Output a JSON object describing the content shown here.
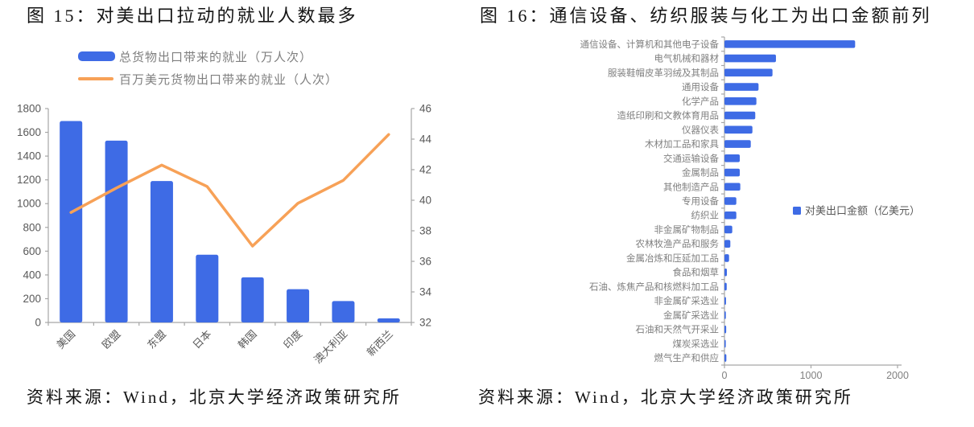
{
  "colors": {
    "bar": "#3E6BE5",
    "line": "#F7A157",
    "axis": "#A6A6A6",
    "tick": "#595959",
    "label": "#808080",
    "title": "#141414"
  },
  "chart_data": [
    {
      "type": "combo",
      "title": "图 15：对美出口拉动的就业人数最多",
      "categories": [
        "美国",
        "欧盟",
        "东盟",
        "日本",
        "韩国",
        "印度",
        "澳大利亚",
        "新西兰"
      ],
      "series": [
        {
          "name": "总货物出口带来的就业（万人次）",
          "type": "bar",
          "axis": "left",
          "values": [
            1695,
            1530,
            1190,
            570,
            380,
            280,
            180,
            35
          ]
        },
        {
          "name": "百万美元货物出口带来的就业（人次）",
          "type": "line",
          "axis": "right",
          "values": [
            39.2,
            40.8,
            42.3,
            40.9,
            37.0,
            39.8,
            41.3,
            44.3
          ]
        }
      ],
      "left_axis": {
        "min": 0,
        "max": 1800,
        "step": 200
      },
      "right_axis": {
        "min": 32,
        "max": 46,
        "step": 2
      },
      "grid": false,
      "legend_position": "top",
      "source": "资料来源：Wind，北京大学经济政策研究所"
    },
    {
      "type": "bar",
      "orientation": "horizontal",
      "title": "图 16：通信设备、纺织服装与化工为出口金额前列",
      "legend": "对美出口金额（亿美元）",
      "categories": [
        "通信设备、计算机和其他电子设备",
        "电气机械和器材",
        "服装鞋帽皮革羽绒及其制品",
        "通用设备",
        "化学产品",
        "造纸印刷和文教体育用品",
        "仪器仪表",
        "木材加工品和家具",
        "交通运输设备",
        "金属制品",
        "其他制造产品",
        "专用设备",
        "纺织业",
        "非金属矿物制品",
        "农林牧渔产品和服务",
        "金属冶炼和压延加工品",
        "食品和烟草",
        "石油、炼焦产品和核燃料加工品",
        "非金属矿采选业",
        "金属矿采选业",
        "石油和天然气开采业",
        "煤炭采选业",
        "燃气生产和供应"
      ],
      "values": [
        1510,
        595,
        555,
        394,
        369,
        356,
        323,
        304,
        177,
        177,
        183,
        137,
        137,
        90,
        68,
        53,
        28,
        26,
        18,
        16,
        20,
        15,
        22
      ],
      "xlim": [
        0,
        2000
      ],
      "x_ticks": [
        0,
        1000,
        2000
      ],
      "grid": false,
      "legend_position": "middle-right",
      "source": "资料来源：Wind，北京大学经济政策研究所"
    }
  ]
}
